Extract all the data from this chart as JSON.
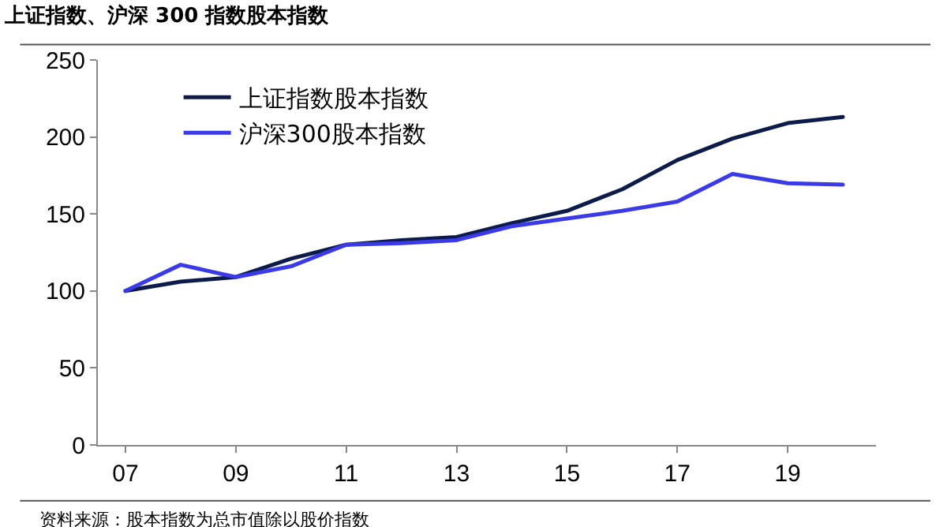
{
  "chart_data": {
    "type": "line",
    "title": "上证指数、沪深 300 指数股本指数",
    "x": [
      2007,
      2008,
      2009,
      2010,
      2011,
      2012,
      2013,
      2014,
      2015,
      2016,
      2017,
      2018,
      2019,
      2020
    ],
    "series": [
      {
        "name": "上证指数股本指数",
        "color": "#0d1b4a",
        "values": [
          100,
          106,
          109,
          121,
          130,
          133,
          135,
          144,
          152,
          166,
          185,
          199,
          209,
          213
        ]
      },
      {
        "name": "沪深300股本指数",
        "color": "#3a3ae6",
        "values": [
          100,
          117,
          109,
          116,
          130,
          131,
          133,
          142,
          147,
          152,
          158,
          176,
          170,
          169
        ]
      }
    ],
    "xlim": [
      2006.5,
      2020.6
    ],
    "xticks": [
      {
        "value": 2007,
        "label": "07"
      },
      {
        "value": 2009,
        "label": "09"
      },
      {
        "value": 2011,
        "label": "11"
      },
      {
        "value": 2013,
        "label": "13"
      },
      {
        "value": 2015,
        "label": "15"
      },
      {
        "value": 2017,
        "label": "17"
      },
      {
        "value": 2019,
        "label": "19"
      }
    ],
    "ylim": [
      0,
      250
    ],
    "yticks": [
      0,
      50,
      100,
      150,
      200,
      250
    ],
    "grid": false,
    "legend": "top left",
    "marker": "none",
    "line_style": "solid",
    "annotations": [
      "资料来源：股本指数为总市值除以股价指数"
    ]
  }
}
